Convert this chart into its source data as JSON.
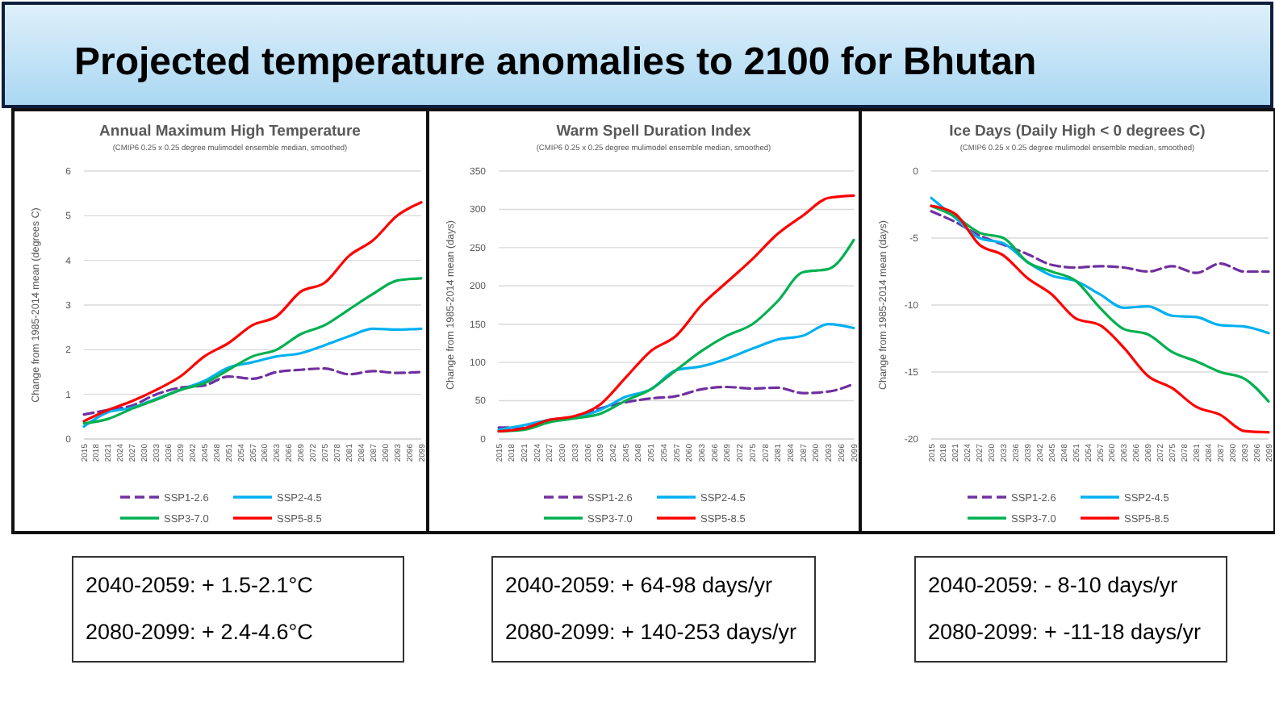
{
  "chart_data": [
    {
      "type": "other",
      "title": "Projected temperature anomalies to 2100 for Bhutan"
    },
    {
      "type": "line",
      "title": "Annual Maximum High Temperature",
      "subtitle": "(CMIP6 0.25 x 0.25 degree mulimodel ensemble median, smoothed)",
      "ylabel": "Change from 1985-2014 mean (degrees C)",
      "x": [
        2015,
        2021,
        2027,
        2033,
        2039,
        2045,
        2051,
        2057,
        2063,
        2069,
        2075,
        2081,
        2087,
        2093,
        2099
      ],
      "xlim": [
        2015,
        2099
      ],
      "xticks": [
        2015,
        2018,
        2021,
        2024,
        2027,
        2030,
        2033,
        2036,
        2039,
        2042,
        2045,
        2048,
        2051,
        2054,
        2057,
        2060,
        2063,
        2066,
        2069,
        2072,
        2075,
        2078,
        2081,
        2084,
        2087,
        2090,
        2093,
        2096,
        2099
      ],
      "ylim": [
        0,
        6
      ],
      "yticks": [
        0,
        1,
        2,
        3,
        4,
        5,
        6
      ],
      "grid": "y",
      "legend": "bottom",
      "marker": "none",
      "series": [
        {
          "name": "SSP1-2.6",
          "color": "#7030a0",
          "line_style": "dashed",
          "values": [
            0.55,
            0.65,
            0.75,
            1.0,
            1.15,
            1.2,
            1.4,
            1.35,
            1.5,
            1.55,
            1.58,
            1.45,
            1.52,
            1.48,
            1.5
          ]
        },
        {
          "name": "SSP2-4.5",
          "color": "#00b0f0",
          "line_style": "solid",
          "values": [
            0.28,
            0.6,
            0.7,
            0.9,
            1.1,
            1.3,
            1.6,
            1.72,
            1.85,
            1.92,
            2.1,
            2.3,
            2.47,
            2.45,
            2.47
          ]
        },
        {
          "name": "SSP3-7.0",
          "color": "#00b050",
          "line_style": "solid",
          "values": [
            0.35,
            0.45,
            0.68,
            0.88,
            1.1,
            1.25,
            1.55,
            1.85,
            2.0,
            2.35,
            2.55,
            2.9,
            3.25,
            3.55,
            3.6
          ]
        },
        {
          "name": "SSP5-8.5",
          "color": "#ff0000",
          "line_style": "solid",
          "values": [
            0.4,
            0.65,
            0.85,
            1.1,
            1.4,
            1.85,
            2.15,
            2.55,
            2.75,
            3.3,
            3.5,
            4.1,
            4.45,
            5.0,
            5.3
          ]
        }
      ]
    },
    {
      "type": "line",
      "title": "Warm Spell Duration Index",
      "subtitle": "(CMIP6 0.25 x 0.25 degree mulimodel ensemble median, smoothed)",
      "ylabel": "Change from 1985-2014 mean (days)",
      "x": [
        2015,
        2021,
        2027,
        2033,
        2039,
        2045,
        2051,
        2057,
        2063,
        2069,
        2075,
        2081,
        2087,
        2093,
        2099
      ],
      "xlim": [
        2015,
        2099
      ],
      "xticks": [
        2015,
        2018,
        2021,
        2024,
        2027,
        2030,
        2033,
        2036,
        2039,
        2042,
        2045,
        2048,
        2051,
        2054,
        2057,
        2060,
        2063,
        2066,
        2069,
        2072,
        2075,
        2078,
        2081,
        2084,
        2087,
        2090,
        2093,
        2096,
        2099
      ],
      "ylim": [
        0,
        350
      ],
      "yticks": [
        0,
        50,
        100,
        150,
        200,
        250,
        300,
        350
      ],
      "grid": "y",
      "legend": "bottom",
      "marker": "none",
      "series": [
        {
          "name": "SSP1-2.6",
          "color": "#7030a0",
          "line_style": "dashed",
          "values": [
            15,
            15,
            25,
            28,
            40,
            48,
            53,
            56,
            65,
            68,
            66,
            67,
            60,
            62,
            72
          ]
        },
        {
          "name": "SSP2-4.5",
          "color": "#00b0f0",
          "line_style": "solid",
          "values": [
            12,
            18,
            25,
            28,
            38,
            55,
            65,
            90,
            95,
            105,
            118,
            130,
            135,
            150,
            145
          ]
        },
        {
          "name": "SSP3-7.0",
          "color": "#00b050",
          "line_style": "solid",
          "values": [
            10,
            12,
            22,
            27,
            33,
            50,
            65,
            90,
            115,
            135,
            150,
            180,
            218,
            222,
            260
          ]
        },
        {
          "name": "SSP5-8.5",
          "color": "#ff0000",
          "line_style": "solid",
          "values": [
            10,
            14,
            25,
            30,
            45,
            80,
            115,
            135,
            175,
            205,
            235,
            268,
            292,
            315,
            318
          ]
        }
      ]
    },
    {
      "type": "line",
      "title": "Ice Days (Daily High < 0 degrees C)",
      "subtitle": "(CMIP6 0.25 x 0.25 degree mulimodel ensemble median, smoothed)",
      "ylabel": "Change from 1985-2014 mean (days)",
      "x": [
        2015,
        2021,
        2027,
        2033,
        2039,
        2045,
        2051,
        2057,
        2063,
        2069,
        2075,
        2081,
        2087,
        2093,
        2099
      ],
      "xlim": [
        2015,
        2099
      ],
      "xticks": [
        2015,
        2018,
        2021,
        2024,
        2027,
        2030,
        2033,
        2036,
        2039,
        2042,
        2045,
        2048,
        2051,
        2054,
        2057,
        2060,
        2063,
        2066,
        2069,
        2072,
        2075,
        2078,
        2081,
        2084,
        2087,
        2090,
        2093,
        2096,
        2099
      ],
      "ylim": [
        -20,
        0
      ],
      "yticks": [
        -20,
        -15,
        -10,
        -5,
        0
      ],
      "grid": "y",
      "legend": "bottom",
      "marker": "none",
      "series": [
        {
          "name": "SSP1-2.6",
          "color": "#7030a0",
          "line_style": "dashed",
          "values": [
            -3,
            -3.8,
            -4.8,
            -5.5,
            -6.2,
            -7,
            -7.2,
            -7.1,
            -7.2,
            -7.5,
            -7.1,
            -7.6,
            -6.9,
            -7.5,
            -7.5
          ]
        },
        {
          "name": "SSP2-4.5",
          "color": "#00b0f0",
          "line_style": "solid",
          "values": [
            -2,
            -3.5,
            -5,
            -5.4,
            -6.8,
            -7.8,
            -8.2,
            -9.2,
            -10.2,
            -10.1,
            -10.8,
            -10.9,
            -11.5,
            -11.6,
            -12.1
          ]
        },
        {
          "name": "SSP3-7.0",
          "color": "#00b050",
          "line_style": "solid",
          "values": [
            -2.6,
            -3.4,
            -4.6,
            -5,
            -6.8,
            -7.5,
            -8.2,
            -10.2,
            -11.8,
            -12.2,
            -13.5,
            -14.2,
            -15,
            -15.5,
            -17.2
          ]
        },
        {
          "name": "SSP5-8.5",
          "color": "#ff0000",
          "line_style": "solid",
          "values": [
            -2.6,
            -3.2,
            -5.5,
            -6.3,
            -8,
            -9.2,
            -11,
            -11.5,
            -13.2,
            -15.3,
            -16.2,
            -17.6,
            -18.2,
            -19.4,
            -19.5
          ]
        }
      ]
    },
    {
      "type": "other",
      "annotations": [
        "2040-2059: + 1.5-2.1°C",
        "2080-2099: + 2.4-4.6°C"
      ]
    },
    {
      "type": "other",
      "annotations": [
        "2040-2059: + 64-98 days/yr",
        "2080-2099: + 140-253 days/yr"
      ]
    },
    {
      "type": "other",
      "annotations": [
        "2040-2059: - 8-10 days/yr",
        "2080-2099: + -11-18 days/yr"
      ]
    }
  ]
}
